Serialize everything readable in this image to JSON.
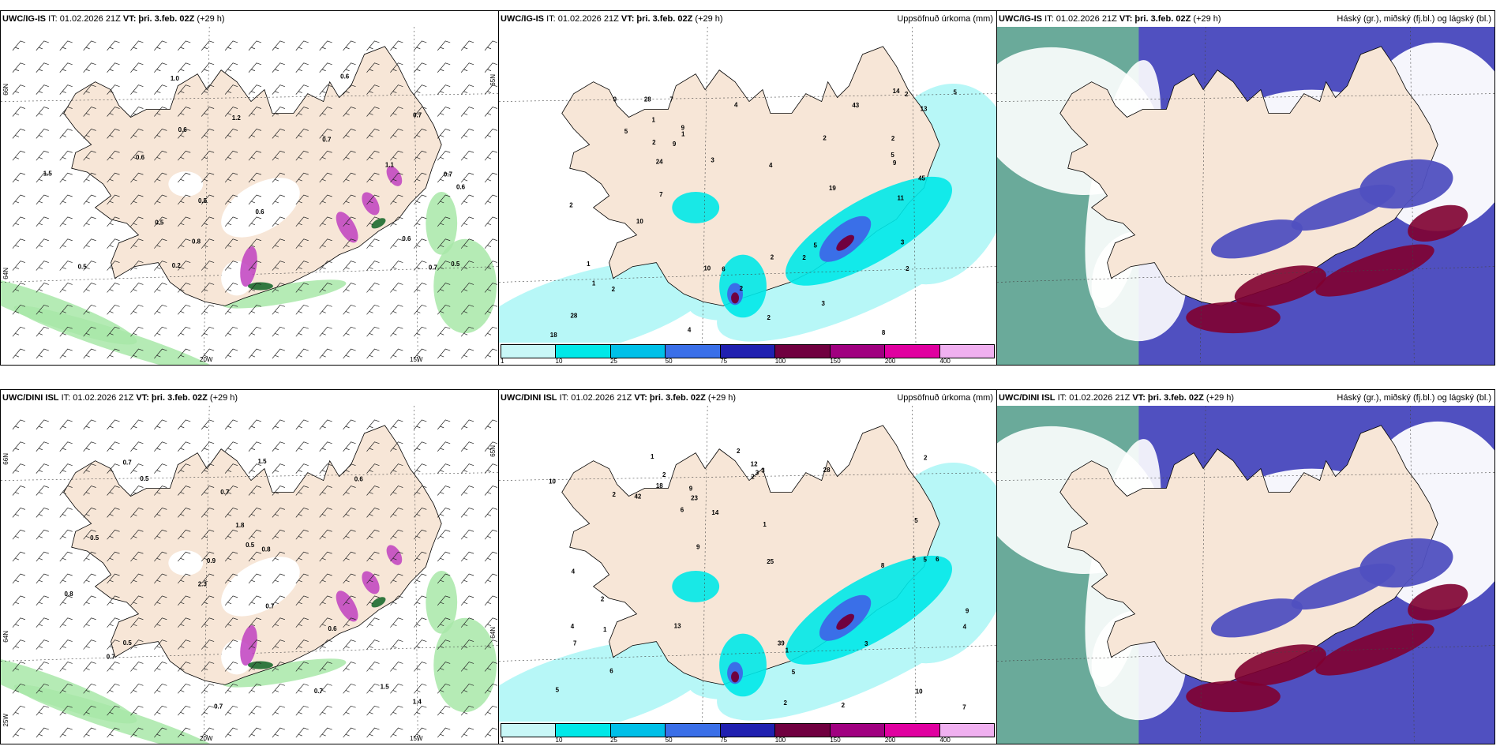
{
  "panels": [
    {
      "model": "UWC/IG-IS",
      "it": "IT: 01.02.2026 21Z",
      "vt_label": "VT:",
      "vt": "þri. 3.feb. 02Z",
      "lead": "(+29 h)",
      "right": "",
      "kind": "wind",
      "values": [
        "0.6",
        "0.7",
        "0.7",
        "0.6",
        "0.5",
        "0.5",
        "0.8",
        "0.6",
        "0.7",
        "0.7",
        "0.6",
        "0.6",
        "1.1",
        "0.2",
        "0.5",
        "0.6",
        "0.5",
        "1.5",
        "1.0",
        "1.2"
      ]
    },
    {
      "model": "UWC/IG-IS",
      "it": "IT: 01.02.2026 21Z",
      "vt_label": "VT:",
      "vt": "þri. 3.feb. 02Z",
      "lead": "(+29 h)",
      "right": "Uppsöfnuð úrkoma (mm)",
      "kind": "precip",
      "values": [
        "2",
        "1",
        "5",
        "3",
        "2",
        "2",
        "14",
        "8",
        "3",
        "1",
        "2",
        "2",
        "28",
        "10",
        "45",
        "18",
        "19",
        "5",
        "9",
        "43",
        "24",
        "28",
        "13",
        "1",
        "2",
        "2",
        "4",
        "6",
        "11",
        "9",
        "9",
        "7",
        "7",
        "10",
        "9",
        "4",
        "4",
        "2",
        "2",
        "1",
        "2",
        "3",
        "5",
        "5",
        "2"
      ]
    },
    {
      "model": "UWC/IG-IS",
      "it": "IT: 01.02.2026 21Z",
      "vt_label": "VT:",
      "vt": "þri. 3.feb. 02Z",
      "lead": "(+29 h)",
      "right": "Háský (gr.), miðský (fj.bl.) og lágský (bl.)",
      "kind": "cloud",
      "values": []
    },
    {
      "model": "UWC/DINI ISL",
      "it": "IT: 01.02.2026 21Z",
      "vt_label": "VT:",
      "vt": "þri. 3.feb. 02Z",
      "lead": "(+29 h)",
      "right": "",
      "kind": "wind",
      "values": [
        "0.7",
        "0.7",
        "0.7",
        "0.8",
        "0.5",
        "0.7",
        "0.7",
        "0.9",
        "0.5",
        "0.8",
        "0.7",
        "1.4",
        "0.6",
        "0.6",
        "1.5",
        "2.3",
        "1.8",
        "0.5",
        "1.5",
        "0.5"
      ]
    },
    {
      "model": "UWC/DINI ISL",
      "it": "IT: 01.02.2026 21Z",
      "vt_label": "VT:",
      "vt": "þri. 3.feb. 02Z",
      "lead": "(+29 h)",
      "right": "Uppsöfnuð úrkoma (mm)",
      "kind": "precip",
      "values": [
        "1",
        "1",
        "2",
        "2",
        "13",
        "8",
        "3",
        "2",
        "18",
        "10",
        "39",
        "9",
        "7",
        "28",
        "42",
        "14",
        "25",
        "23",
        "12",
        "3",
        "2",
        "1",
        "6",
        "5",
        "4",
        "7",
        "9",
        "10",
        "9",
        "6",
        "4",
        "4",
        "5",
        "2",
        "2",
        "1",
        "2",
        "2",
        "5",
        "3",
        "6",
        "5",
        "5"
      ]
    },
    {
      "model": "UWC/DINI ISL",
      "it": "IT: 01.02.2026 21Z",
      "vt_label": "VT:",
      "vt": "þri. 3.feb. 02Z",
      "lead": "(+29 h)",
      "right": "Háský (gr.), miðský (fj.bl.) og lágský (bl.)",
      "kind": "cloud",
      "values": []
    }
  ],
  "axes": {
    "lat": [
      "66N",
      "64N",
      "25W"
    ],
    "lat_right": [
      "65N",
      "64N"
    ],
    "lon": [
      "20W",
      "15W"
    ]
  },
  "colorbar": {
    "ticks": [
      "1",
      "10",
      "25",
      "50",
      "75",
      "100",
      "150",
      "200",
      "400"
    ],
    "colors": [
      "#c8f7f7",
      "#00e8e8",
      "#00c0e8",
      "#3a6fe8",
      "#2020b0",
      "#700040",
      "#a00080",
      "#e000a0",
      "#f0b0f0"
    ]
  },
  "colors": {
    "land": "#f7e6d7",
    "sea_precip": "#b7f7f7",
    "cloud_high": "#6aaa9a",
    "cloud_mid": "#5050c0",
    "cloud_low": "#800030",
    "wind_green": "#a8e8a8"
  }
}
